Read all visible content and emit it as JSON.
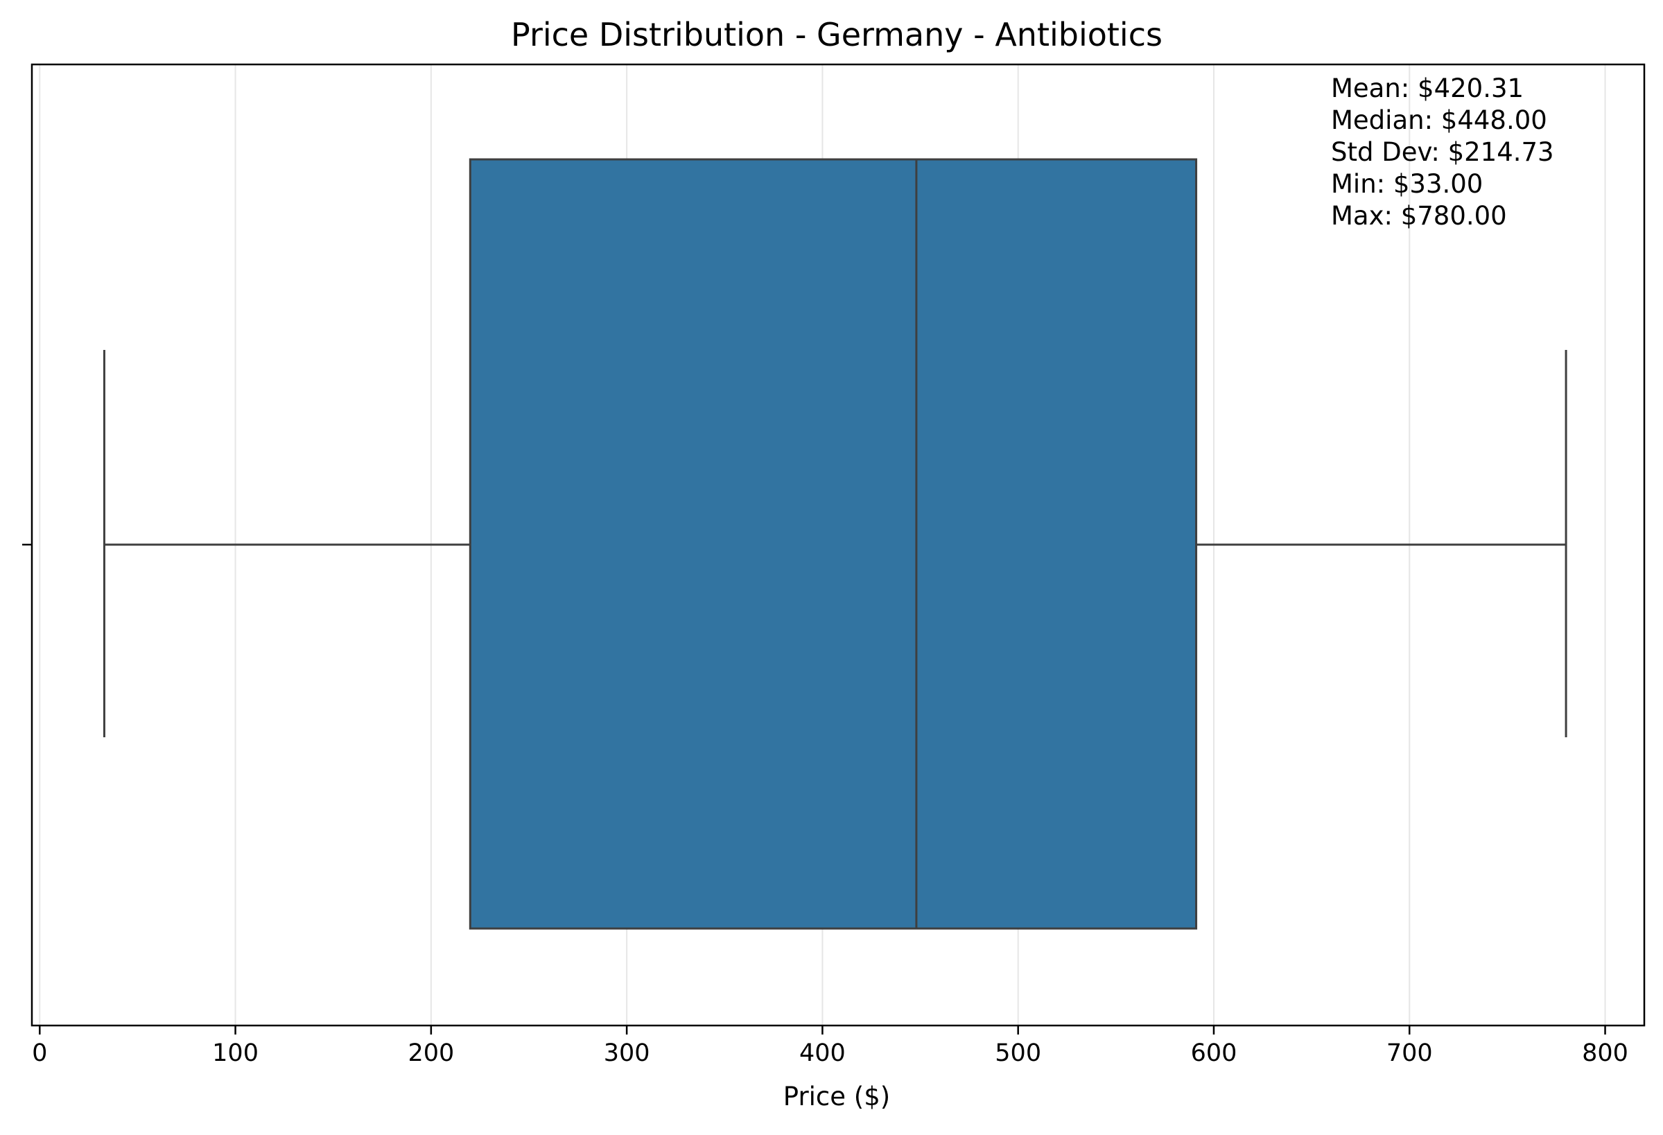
{
  "chart_data": {
    "type": "box",
    "title": "Price Distribution - Germany - Antibiotics",
    "xlabel": "Price ($)",
    "ylabel": "",
    "orientation": "horizontal",
    "xlim": [
      -4,
      820
    ],
    "xticks": [
      0,
      100,
      200,
      300,
      400,
      500,
      600,
      700,
      800
    ],
    "xtick_labels": [
      "0",
      "100",
      "200",
      "300",
      "400",
      "500",
      "600",
      "700",
      "800"
    ],
    "grid": "vertical",
    "box": {
      "whisker_low": 33,
      "q1": 220,
      "median": 448,
      "q3": 591,
      "whisker_high": 780
    },
    "stats": [
      "Mean: $420.31",
      "Median: $448.00",
      "Std Dev: $214.73",
      "Min: $33.00",
      "Max: $780.00"
    ],
    "stats_position": "top-right",
    "colors": {
      "box_fill": "#3274a1",
      "box_edge": "#3f3f3f",
      "grid": "#e6e6e6",
      "axes": "#000000"
    }
  }
}
